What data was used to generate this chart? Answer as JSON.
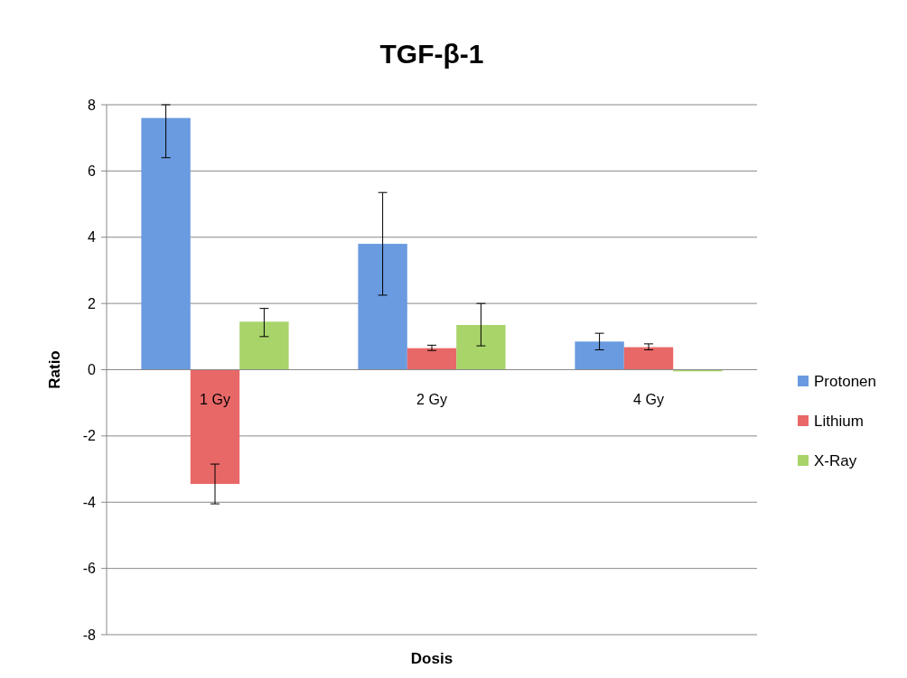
{
  "chart_data": {
    "type": "bar",
    "title": "TGF-β-1",
    "xlabel": "Dosis",
    "ylabel": "Ratio",
    "categories": [
      "1 Gy",
      "2 Gy",
      "4 Gy"
    ],
    "series": [
      {
        "name": "Protonen",
        "color": "#6a9be0",
        "values": [
          7.6,
          3.8,
          0.85
        ],
        "errors": [
          [
            6.4,
            8.0
          ],
          [
            2.25,
            5.35
          ],
          [
            0.6,
            1.1
          ]
        ]
      },
      {
        "name": "Lithium",
        "color": "#e86868",
        "values": [
          -3.45,
          0.65,
          0.68
        ],
        "errors": [
          [
            -4.05,
            -2.85
          ],
          [
            0.58,
            0.74
          ],
          [
            0.6,
            0.78
          ]
        ]
      },
      {
        "name": "X-Ray",
        "color": "#a8d46a",
        "values": [
          1.45,
          1.35,
          -0.05
        ],
        "errors": [
          [
            1.0,
            1.85
          ],
          [
            0.72,
            2.0
          ],
          null
        ]
      }
    ],
    "ylim": [
      -8,
      8
    ],
    "yticks": [
      -8,
      -6,
      -4,
      -2,
      0,
      2,
      4,
      6,
      8
    ],
    "grid": "y",
    "legend": "right"
  }
}
